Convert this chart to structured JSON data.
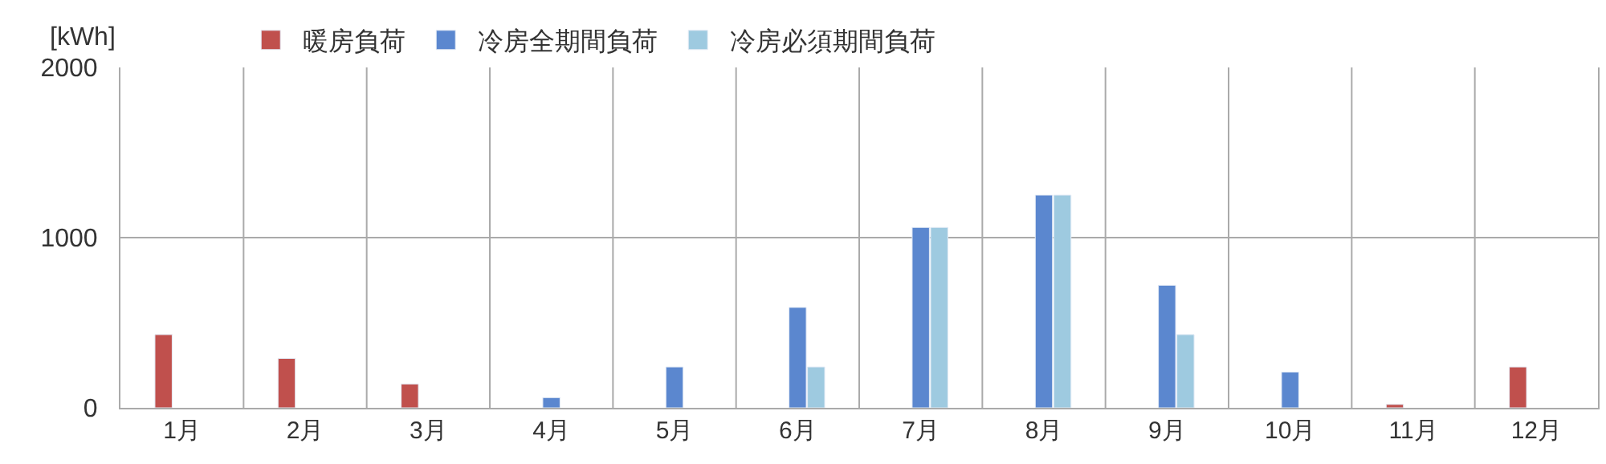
{
  "chart_data": {
    "type": "bar",
    "ylabel": "[kWh]",
    "categories": [
      "1月",
      "2月",
      "3月",
      "4月",
      "5月",
      "6月",
      "7月",
      "8月",
      "9月",
      "10月",
      "11月",
      "12月"
    ],
    "series": [
      {
        "name": "暖房負荷",
        "color": "#c0504d",
        "values": [
          430,
          290,
          140,
          null,
          null,
          null,
          null,
          null,
          null,
          null,
          20,
          240
        ]
      },
      {
        "name": "冷房全期間負荷",
        "color": "#5b87cf",
        "values": [
          null,
          null,
          null,
          60,
          240,
          590,
          1060,
          1250,
          720,
          210,
          null,
          null
        ]
      },
      {
        "name": "冷房必須期間負荷",
        "color": "#9ecae0",
        "values": [
          null,
          null,
          null,
          null,
          null,
          240,
          1060,
          1250,
          430,
          null,
          null,
          null
        ]
      }
    ],
    "ylim": [
      0,
      2000
    ],
    "yticks": [
      0,
      1000,
      2000
    ],
    "grid": true,
    "legend": "top left"
  }
}
